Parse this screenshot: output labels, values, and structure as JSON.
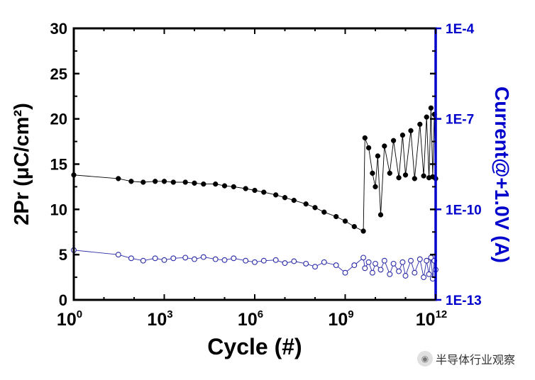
{
  "chart_data": {
    "type": "scatter",
    "xlabel": "Cycle (#)",
    "ylabel_left": "2Pr (μC/cm²)",
    "ylabel_right": "Current@+1.0V (A)",
    "x_scale": "log10",
    "xlim": [
      1,
      1000000000000.0
    ],
    "x_ticks": [
      {
        "base": "10",
        "exp": "0",
        "value": 1
      },
      {
        "base": "10",
        "exp": "3",
        "value": 1000.0
      },
      {
        "base": "10",
        "exp": "6",
        "value": 1000000.0
      },
      {
        "base": "10",
        "exp": "9",
        "value": 1000000000.0
      },
      {
        "base": "10",
        "exp": "12",
        "value": 1000000000000.0
      }
    ],
    "ylim_left": [
      0,
      30
    ],
    "y_ticks_left": [
      "0",
      "5",
      "10",
      "15",
      "20",
      "25",
      "30"
    ],
    "ylim_right_log10": [
      -13,
      -4
    ],
    "y_ticks_right": [
      {
        "label": "1E-13",
        "log10": -13
      },
      {
        "label": "1E-10",
        "log10": -10
      },
      {
        "label": "1E-7",
        "log10": -7
      },
      {
        "label": "1E-4",
        "log10": -4
      }
    ],
    "series": [
      {
        "name": "2Pr",
        "axis": "left",
        "marker": "filled-circle",
        "color": "#000000",
        "points": [
          [
            1,
            13.8
          ],
          [
            30,
            13.4
          ],
          [
            80,
            13.1
          ],
          [
            200,
            13.0
          ],
          [
            500,
            13.1
          ],
          [
            1000,
            13.1
          ],
          [
            2000,
            13.0
          ],
          [
            5000,
            13.0
          ],
          [
            10000.0,
            12.9
          ],
          [
            20000.0,
            12.8
          ],
          [
            50000.0,
            12.8
          ],
          [
            100000.0,
            12.6
          ],
          [
            200000.0,
            12.5
          ],
          [
            500000.0,
            12.3
          ],
          [
            1000000.0,
            12.1
          ],
          [
            2000000.0,
            11.9
          ],
          [
            5000000.0,
            11.6
          ],
          [
            10000000.0,
            11.3
          ],
          [
            20000000.0,
            11.0
          ],
          [
            50000000.0,
            10.6
          ],
          [
            100000000.0,
            10.2
          ],
          [
            200000000.0,
            9.7
          ],
          [
            500000000.0,
            9.2
          ],
          [
            1000000000.0,
            8.7
          ],
          [
            2000000000.0,
            8.1
          ],
          [
            4000000000.0,
            7.6
          ],
          [
            4500000000.0,
            17.9
          ],
          [
            6000000000.0,
            16.8
          ],
          [
            8000000000.0,
            14.0
          ],
          [
            10000000000.0,
            12.5
          ],
          [
            12000000000.0,
            15.9
          ],
          [
            15000000000.0,
            9.4
          ],
          [
            20000000000.0,
            17.0
          ],
          [
            30000000000.0,
            14.0
          ],
          [
            40000000000.0,
            17.6
          ],
          [
            60000000000.0,
            13.5
          ],
          [
            80000000000.0,
            18.2
          ],
          [
            100000000000.0,
            13.8
          ],
          [
            150000000000.0,
            18.7
          ],
          [
            200000000000.0,
            13.4
          ],
          [
            300000000000.0,
            19.4
          ],
          [
            400000000000.0,
            13.7
          ],
          [
            500000000000.0,
            20.2
          ],
          [
            600000000000.0,
            13.5
          ],
          [
            700000000000.0,
            21.2
          ],
          [
            800000000000.0,
            13.6
          ],
          [
            900000000000.0,
            20.5
          ],
          [
            1000000000000.0,
            13.4
          ]
        ]
      },
      {
        "name": "Current@+1.0V",
        "axis": "right",
        "marker": "open-circle",
        "color": "#2a2aa8",
        "points": [
          [
            1,
            -11.35
          ],
          [
            30,
            -11.5
          ],
          [
            80,
            -11.62
          ],
          [
            200,
            -11.7
          ],
          [
            500,
            -11.62
          ],
          [
            1000,
            -11.68
          ],
          [
            2000,
            -11.62
          ],
          [
            5000,
            -11.6
          ],
          [
            10000.0,
            -11.65
          ],
          [
            20000.0,
            -11.58
          ],
          [
            50000.0,
            -11.65
          ],
          [
            100000.0,
            -11.68
          ],
          [
            200000.0,
            -11.62
          ],
          [
            500000.0,
            -11.7
          ],
          [
            1000000.0,
            -11.75
          ],
          [
            2000000.0,
            -11.7
          ],
          [
            5000000.0,
            -11.68
          ],
          [
            10000000.0,
            -11.78
          ],
          [
            20000000.0,
            -11.72
          ],
          [
            50000000.0,
            -11.8
          ],
          [
            100000000.0,
            -11.9
          ],
          [
            200000000.0,
            -11.75
          ],
          [
            500000000.0,
            -11.85
          ],
          [
            1000000000.0,
            -12.1
          ],
          [
            2000000000.0,
            -11.85
          ],
          [
            4000000000.0,
            -11.6
          ],
          [
            4500000000.0,
            -11.95
          ],
          [
            6000000000.0,
            -11.75
          ],
          [
            8000000000.0,
            -12.1
          ],
          [
            10000000000.0,
            -11.8
          ],
          [
            15000000000.0,
            -12.0
          ],
          [
            20000000000.0,
            -11.7
          ],
          [
            30000000000.0,
            -12.15
          ],
          [
            40000000000.0,
            -11.8
          ],
          [
            60000000000.0,
            -12.05
          ],
          [
            80000000000.0,
            -11.75
          ],
          [
            100000000000.0,
            -12.2
          ],
          [
            150000000000.0,
            -11.7
          ],
          [
            200000000000.0,
            -12.1
          ],
          [
            300000000000.0,
            -11.65
          ],
          [
            400000000000.0,
            -12.25
          ],
          [
            500000000000.0,
            -11.7
          ],
          [
            600000000000.0,
            -12.15
          ],
          [
            700000000000.0,
            -11.6
          ],
          [
            800000000000.0,
            -12.3
          ],
          [
            900000000000.0,
            -11.7
          ],
          [
            1000000000000.0,
            -12.0
          ]
        ]
      }
    ]
  },
  "watermark": {
    "icon": "wechat-icon",
    "text": "半导体行业观察"
  }
}
